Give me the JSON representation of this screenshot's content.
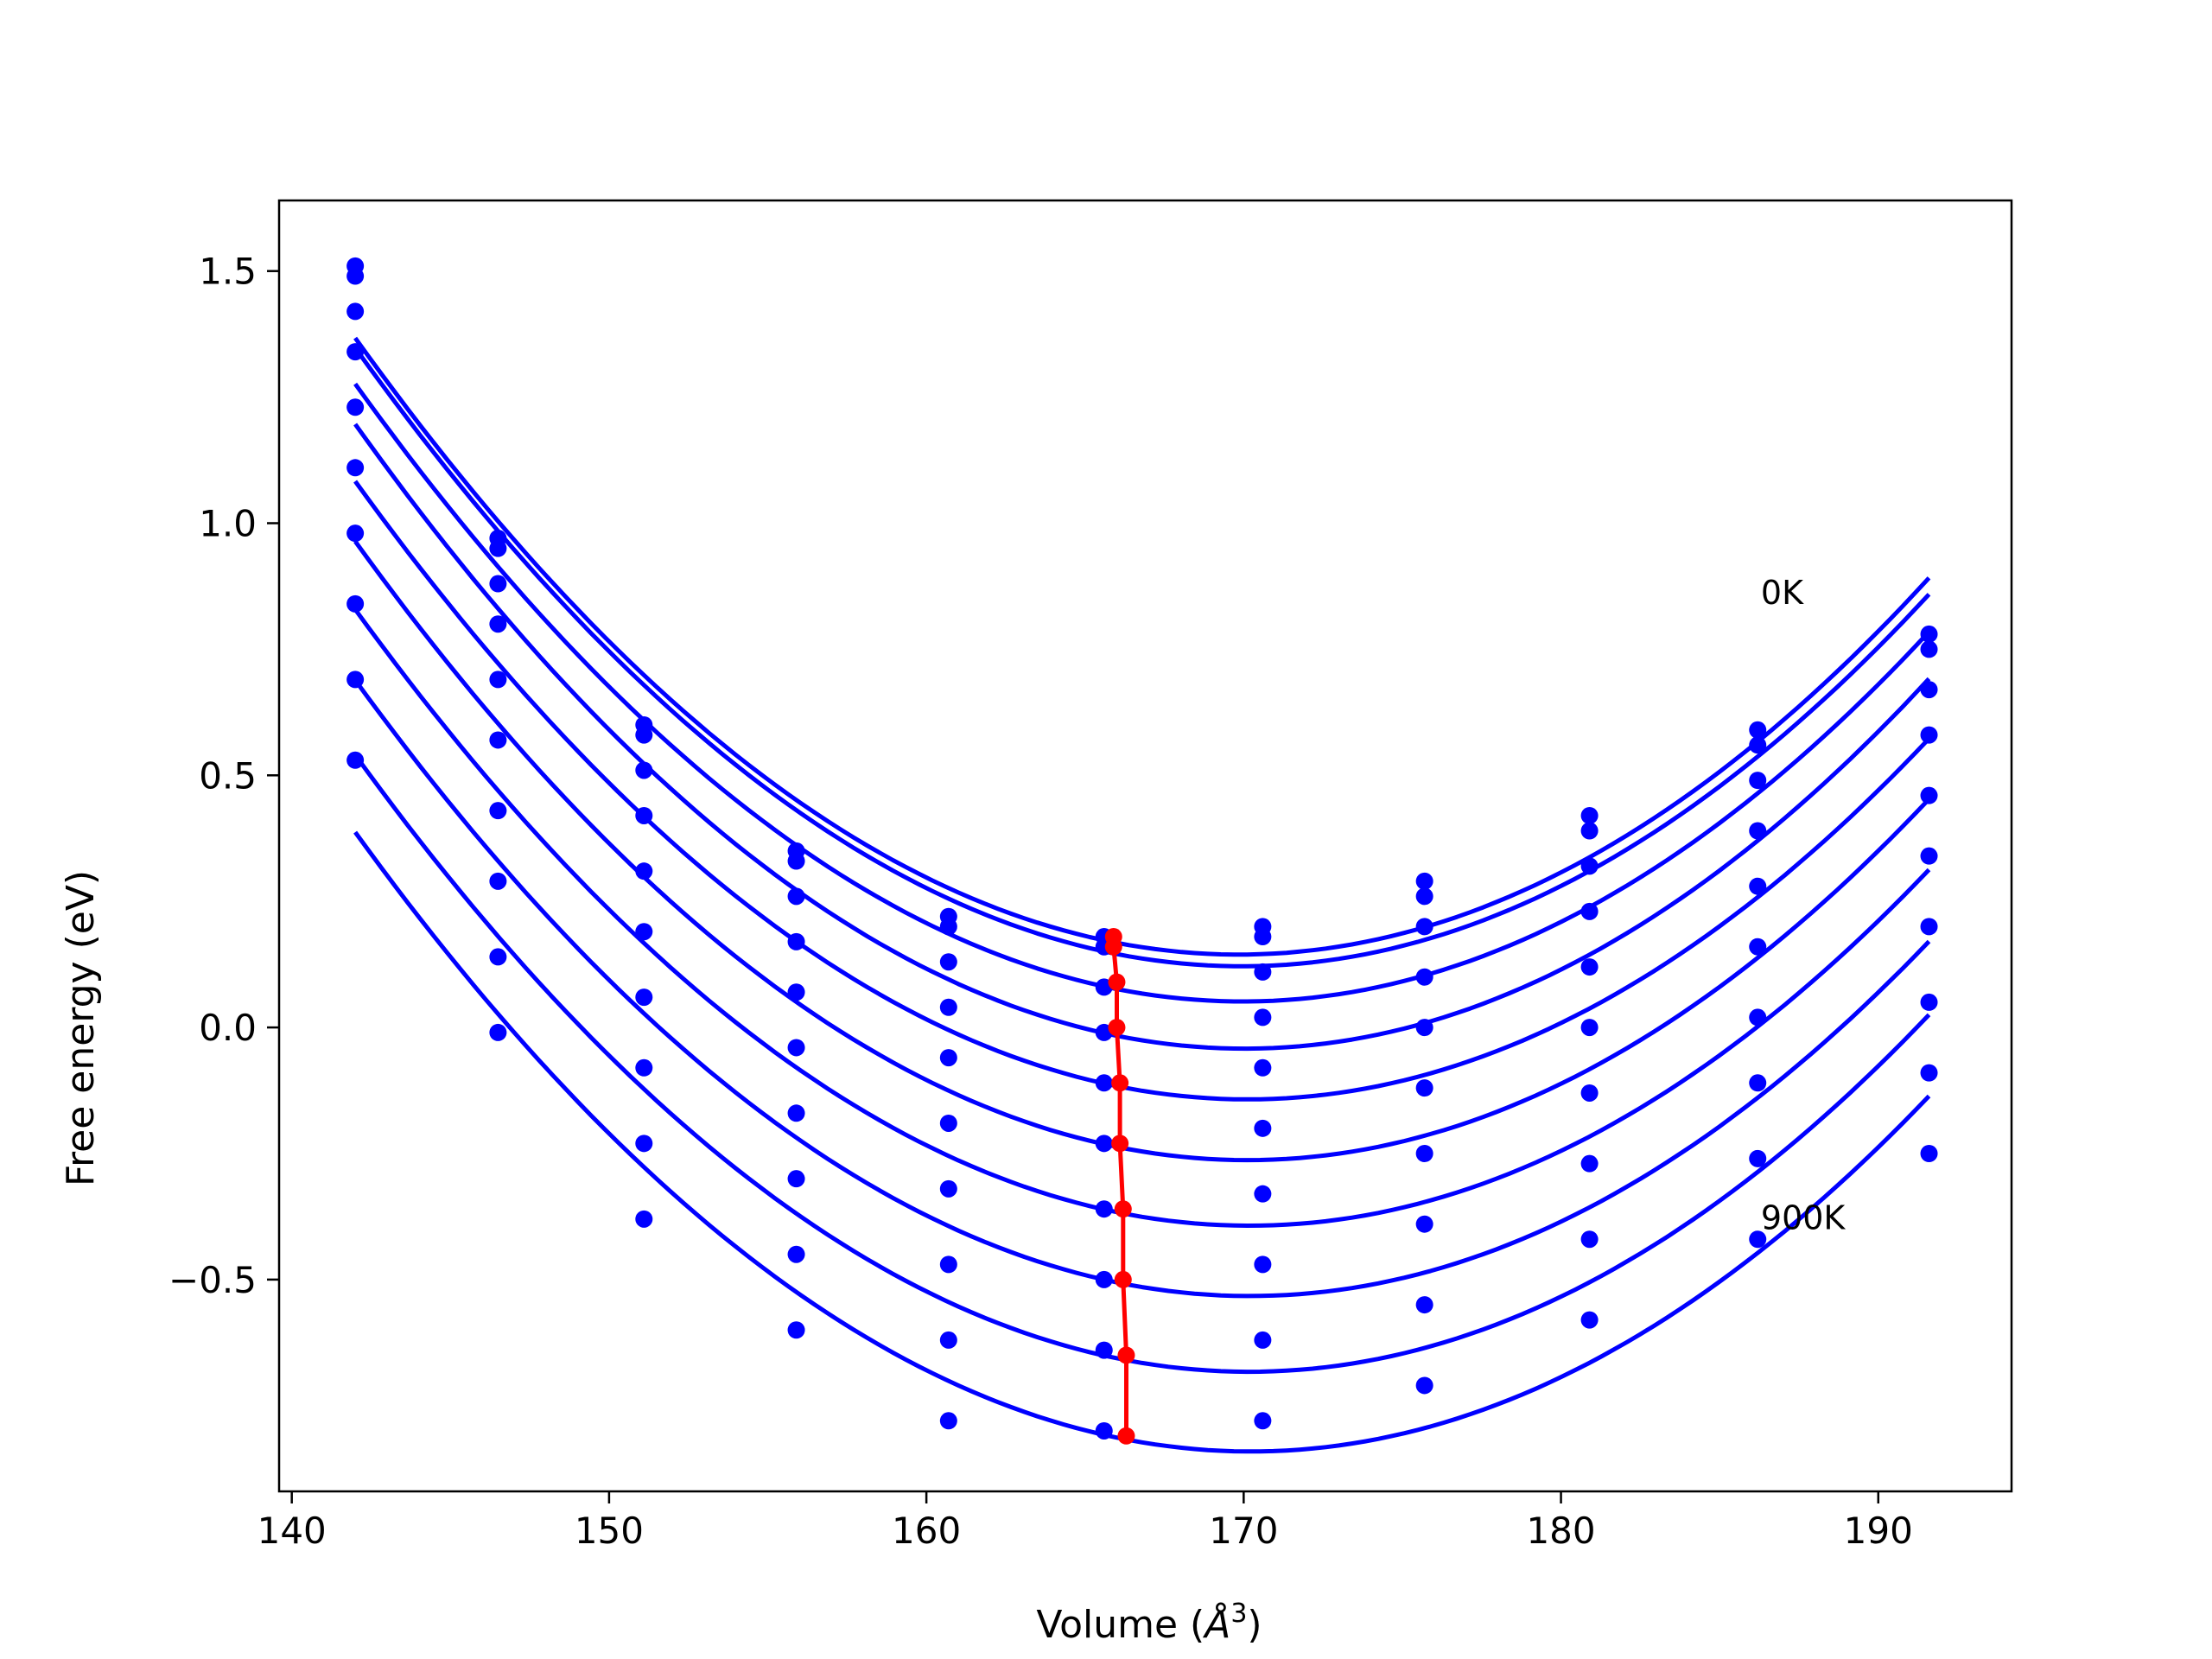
{
  "chart_data": {
    "type": "line",
    "title": "",
    "xlabel": "Volume (Å³)",
    "xlabel_parts": {
      "text": "Volume (",
      "symbol": "Å",
      "exponent": "3",
      "close": ")"
    },
    "ylabel": "Free energy (eV)",
    "xlim": [
      139.6,
      194.2
    ],
    "ylim": [
      -0.92,
      1.64
    ],
    "xticks": [
      140,
      150,
      160,
      170,
      180,
      190
    ],
    "xtick_labels": [
      "140",
      "150",
      "160",
      "170",
      "180",
      "190"
    ],
    "yticks": [
      -0.5,
      0.0,
      0.5,
      1.0,
      1.5
    ],
    "ytick_labels": [
      "−0.5",
      "0.0",
      "0.5",
      "1.0",
      "1.5"
    ],
    "grid": false,
    "annotations": [
      {
        "text": "0K",
        "x": 186.3,
        "y": 0.84
      },
      {
        "text": "900K",
        "x": 186.3,
        "y": -0.4
      }
    ],
    "x": [
      142.0,
      146.5,
      151.1,
      155.9,
      160.7,
      165.6,
      170.6,
      175.7,
      180.9,
      186.2,
      191.6
    ],
    "curve_color": "#0000ff",
    "point_color": "#0000ff",
    "series": [
      {
        "values": [
          1.51,
          0.97,
          0.6,
          0.35,
          0.22,
          0.18,
          0.2,
          0.29,
          0.42,
          0.59,
          0.78
        ]
      },
      {
        "values": [
          1.49,
          0.95,
          0.58,
          0.33,
          0.2,
          0.16,
          0.18,
          0.26,
          0.39,
          0.56,
          0.75
        ]
      },
      {
        "values": [
          1.42,
          0.88,
          0.51,
          0.26,
          0.13,
          0.08,
          0.11,
          0.2,
          0.32,
          0.49,
          0.67
        ]
      },
      {
        "values": [
          1.34,
          0.8,
          0.42,
          0.17,
          0.04,
          -0.01,
          0.02,
          0.1,
          0.23,
          0.39,
          0.58
        ]
      },
      {
        "values": [
          1.23,
          0.69,
          0.31,
          0.07,
          -0.06,
          -0.11,
          -0.08,
          0.0,
          0.12,
          0.28,
          0.46
        ]
      },
      {
        "values": [
          1.11,
          0.57,
          0.19,
          -0.04,
          -0.19,
          -0.23,
          -0.2,
          -0.12,
          0.0,
          0.16,
          0.34
        ]
      },
      {
        "values": [
          0.98,
          0.43,
          0.06,
          -0.17,
          -0.32,
          -0.36,
          -0.33,
          -0.25,
          -0.13,
          0.02,
          0.2
        ]
      },
      {
        "values": [
          0.84,
          0.29,
          -0.08,
          -0.3,
          -0.47,
          -0.5,
          -0.47,
          -0.39,
          -0.27,
          -0.11,
          0.05
        ]
      },
      {
        "values": [
          0.69,
          0.14,
          -0.23,
          -0.45,
          -0.62,
          -0.64,
          -0.62,
          -0.55,
          -0.42,
          -0.26,
          -0.09
        ]
      },
      {
        "values": [
          0.53,
          -0.01,
          -0.38,
          -0.6,
          -0.78,
          -0.8,
          -0.78,
          -0.71,
          -0.58,
          -0.42,
          -0.25
        ]
      }
    ],
    "minima": {
      "color": "#ff0000",
      "x": [
        165.9,
        165.9,
        166.0,
        166.0,
        166.1,
        166.1,
        166.2,
        166.2,
        166.3,
        166.3
      ],
      "y": [
        0.18,
        0.16,
        0.09,
        0.0,
        -0.11,
        -0.23,
        -0.36,
        -0.5,
        -0.65,
        -0.81
      ]
    }
  }
}
